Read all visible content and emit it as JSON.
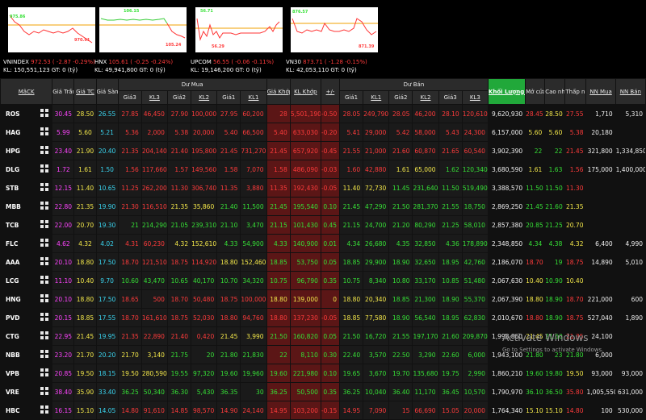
{
  "indices": [
    {
      "name": "VNINDEX",
      "value": "972.53",
      "change": "( -2.87",
      "pct": "-0.29%)",
      "kl": "KL: 150,551,123",
      "gt": "GT: 0 (tỷ)",
      "hi": "975.86",
      "lo": "970.91",
      "ref": 0.55,
      "hiLabel": "top"
    },
    {
      "name": "HNX",
      "value": "105.61",
      "change": "( -0.25",
      "pct": "-0.24%)",
      "kl": "KL: 49,941,800",
      "gt": "GT: 0 (tỷ)",
      "hi": "106.15",
      "lo": "105.24",
      "ref": 0.35,
      "hiLabel": "top"
    },
    {
      "name": "UPCOM",
      "value": "56.55",
      "change": "( -0.06",
      "pct": "-0.11%)",
      "kl": "KL: 19,146,200",
      "gt": "GT: 0 (tỷ)",
      "hi": "56.71",
      "lo": "56.29",
      "ref": 0.45,
      "hiLabel": "top"
    },
    {
      "name": "VN30",
      "value": "873.71",
      "change": "( -1.28",
      "pct": "-0.15%)",
      "kl": "KL: 42,053,110",
      "gt": "GT: 0 (tỷ)",
      "hi": "876.57",
      "lo": "871.39",
      "ref": 0.5,
      "hiLabel": "top"
    }
  ],
  "headers": {
    "mack": "MãCK",
    "tran": "Giá Trần",
    "tc": "Giá TC",
    "san": "Giá Sàn",
    "du_mua": "Dư Mua",
    "du_ban": "Dư Bán",
    "gia3": "Giá3",
    "kl3": "KL3",
    "gia2": "Giá2",
    "kl2": "KL2",
    "gia1": "Giá1",
    "kl1": "KL1",
    "gia_khop": "Giá Khớp",
    "kl_khop": "KL Khớp",
    "change": "+/-",
    "bgia1": "Giá1",
    "bkl1": "KL1",
    "bgia2": "Giá2",
    "bkl2": "KL2",
    "bgia3": "Giá3",
    "bkl3": "KL3",
    "khoi_luong": "Khối Lượng ⇅",
    "mo_cua": "Mở cửa",
    "cao_nhat": "Cao nhất",
    "thap_nhat": "Thấp nhất",
    "nn_mua": "NN Mua",
    "nn_ban": "NN Bán"
  },
  "rows": [
    {
      "sym": "ROS",
      "tran": "30.45",
      "tc": "28.50",
      "san": "26.55",
      "b": [
        "27.85",
        "46,450",
        "27.90",
        "100,000",
        "27.95",
        "60,200"
      ],
      "khop": "28",
      "klk": "5,501,190",
      "chg": "-0.50",
      "s": [
        "28.05",
        "249,790",
        "28.05",
        "46,200",
        "28.10",
        "120,610"
      ],
      "vol": "9,620,930",
      "mo": "28.45",
      "cao": "28.50",
      "thap": "27.55",
      "nnm": "1,710",
      "nnb": "5,310"
    },
    {
      "sym": "HAG",
      "tran": "5.99",
      "tc": "5.60",
      "san": "5.21",
      "b": [
        "5.36",
        "2,000",
        "5.38",
        "20,000",
        "5.40",
        "66,500"
      ],
      "khop": "5.40",
      "klk": "633,030",
      "chg": "-0.20",
      "s": [
        "5.41",
        "29,000",
        "5.42",
        "58,000",
        "5.43",
        "24,300"
      ],
      "vol": "6,157,000",
      "mo": "5.60",
      "cao": "5.60",
      "thap": "5.38",
      "nnm": "20,180",
      "nnb": ""
    },
    {
      "sym": "HPG",
      "tran": "23.40",
      "tc": "21.90",
      "san": "20.40",
      "b": [
        "21.35",
        "204,140",
        "21.40",
        "195,800",
        "21.45",
        "731,270"
      ],
      "khop": "21.45",
      "klk": "657,920",
      "chg": "-0.45",
      "s": [
        "21.55",
        "21,000",
        "21.60",
        "60,870",
        "21.65",
        "60,540"
      ],
      "vol": "3,902,390",
      "mo": "22",
      "cao": "22",
      "thap": "21.45",
      "nnm": "321,800",
      "nnb": "1,334,850"
    },
    {
      "sym": "DLG",
      "tran": "1.72",
      "tc": "1.61",
      "san": "1.50",
      "b": [
        "1.56",
        "117,660",
        "1.57",
        "149,560",
        "1.58",
        "7,070"
      ],
      "khop": "1.58",
      "klk": "486,090",
      "chg": "-0.03",
      "s": [
        "1.60",
        "42,880",
        "1.61",
        "65,000",
        "1.62",
        "120,340"
      ],
      "vol": "3,680,590",
      "mo": "1.61",
      "cao": "1.63",
      "thap": "1.56",
      "nnm": "175,000",
      "nnb": "1,400,000"
    },
    {
      "sym": "STB",
      "tran": "12.15",
      "tc": "11.40",
      "san": "10.65",
      "b": [
        "11.25",
        "262,200",
        "11.30",
        "306,740",
        "11.35",
        "3,880"
      ],
      "khop": "11.35",
      "klk": "192,430",
      "chg": "-0.05",
      "s": [
        "11.40",
        "72,730",
        "11.45",
        "231,640",
        "11.50",
        "519,490"
      ],
      "vol": "3,388,570",
      "mo": "11.50",
      "cao": "11.50",
      "thap": "11.30",
      "nnm": "",
      "nnb": ""
    },
    {
      "sym": "MBB",
      "tran": "22.80",
      "tc": "21.35",
      "san": "19.90",
      "b": [
        "21.30",
        "116,510",
        "21.35",
        "35,860",
        "21.40",
        "11,500"
      ],
      "khop": "21.45",
      "klk": "195,540",
      "chg": "0.10",
      "s": [
        "21.45",
        "47,290",
        "21.50",
        "281,370",
        "21.55",
        "18,750"
      ],
      "vol": "2,869,250",
      "mo": "21.45",
      "cao": "21.60",
      "thap": "21.35",
      "nnm": "",
      "nnb": ""
    },
    {
      "sym": "TCB",
      "tran": "22.00",
      "tc": "20.70",
      "san": "19.30",
      "b": [
        "21",
        "214,290",
        "21.05",
        "239,310",
        "21.10",
        "3,470"
      ],
      "khop": "21.15",
      "klk": "101,430",
      "chg": "0.45",
      "s": [
        "21.15",
        "24,700",
        "21.20",
        "80,290",
        "21.25",
        "58,010"
      ],
      "vol": "2,857,380",
      "mo": "20.85",
      "cao": "21.25",
      "thap": "20.70",
      "nnm": "",
      "nnb": ""
    },
    {
      "sym": "FLC",
      "tran": "4.62",
      "tc": "4.32",
      "san": "4.02",
      "b": [
        "4.31",
        "60,230",
        "4.32",
        "152,610",
        "4.33",
        "54,900"
      ],
      "khop": "4.33",
      "klk": "140,900",
      "chg": "0.01",
      "s": [
        "4.34",
        "26,680",
        "4.35",
        "32,850",
        "4.36",
        "178,890"
      ],
      "vol": "2,348,850",
      "mo": "4.34",
      "cao": "4.38",
      "thap": "4.32",
      "nnm": "6,400",
      "nnb": "4,990"
    },
    {
      "sym": "AAA",
      "tran": "20.10",
      "tc": "18.80",
      "san": "17.50",
      "b": [
        "18.70",
        "121,510",
        "18.75",
        "114,920",
        "18.80",
        "152,460"
      ],
      "khop": "18.85",
      "klk": "53,750",
      "chg": "0.05",
      "s": [
        "18.85",
        "29,900",
        "18.90",
        "32,650",
        "18.95",
        "42,760"
      ],
      "vol": "2,186,070",
      "mo": "18.70",
      "cao": "19",
      "thap": "18.75",
      "nnm": "14,890",
      "nnb": "5,010"
    },
    {
      "sym": "LCG",
      "tran": "11.10",
      "tc": "10.40",
      "san": "9.70",
      "b": [
        "10.60",
        "43,470",
        "10.65",
        "40,170",
        "10.70",
        "34,320"
      ],
      "khop": "10.75",
      "klk": "96,790",
      "chg": "0.35",
      "s": [
        "10.75",
        "8,340",
        "10.80",
        "33,170",
        "10.85",
        "51,480"
      ],
      "vol": "2,067,630",
      "mo": "10.40",
      "cao": "10.90",
      "thap": "10.40",
      "nnm": "",
      "nnb": ""
    },
    {
      "sym": "HNG",
      "tran": "20.10",
      "tc": "18.80",
      "san": "17.50",
      "b": [
        "18.65",
        "500",
        "18.70",
        "50,480",
        "18.75",
        "100,000"
      ],
      "khop": "18.80",
      "klk": "139,000",
      "chg": "0",
      "s": [
        "18.80",
        "20,340",
        "18.85",
        "21,300",
        "18.90",
        "55,370"
      ],
      "vol": "2,067,390",
      "mo": "18.80",
      "cao": "18.90",
      "thap": "18.70",
      "nnm": "221,000",
      "nnb": "600"
    },
    {
      "sym": "PVD",
      "tran": "20.15",
      "tc": "18.85",
      "san": "17.55",
      "b": [
        "18.70",
        "161,610",
        "18.75",
        "52,030",
        "18.80",
        "94,760"
      ],
      "khop": "18.80",
      "klk": "137,230",
      "chg": "-0.05",
      "s": [
        "18.85",
        "77,580",
        "18.90",
        "56,540",
        "18.95",
        "62,830"
      ],
      "vol": "2,010,670",
      "mo": "18.80",
      "cao": "18.90",
      "thap": "18.75",
      "nnm": "527,040",
      "nnb": "1,890"
    },
    {
      "sym": "CTG",
      "tran": "22.95",
      "tc": "21.45",
      "san": "19.95",
      "b": [
        "21.35",
        "22,890",
        "21.40",
        "0,420",
        "21.45",
        "3,990"
      ],
      "khop": "21.50",
      "klk": "160,820",
      "chg": "0.05",
      "s": [
        "21.50",
        "16,720",
        "21.55",
        "197,170",
        "21.60",
        "209,870"
      ],
      "vol": "1,998,860",
      "mo": "21.45",
      "cao": "21.60",
      "thap": "21.35",
      "nnm": "24,100",
      "nnb": ""
    },
    {
      "sym": "NBB",
      "tran": "23.20",
      "tc": "21.70",
      "san": "20.20",
      "b": [
        "21.70",
        "3,140",
        "21.75",
        "20",
        "21.80",
        "21,830"
      ],
      "khop": "22",
      "klk": "8,110",
      "chg": "0.30",
      "s": [
        "22.40",
        "3,570",
        "22.50",
        "3,290",
        "22.60",
        "6,000"
      ],
      "vol": "1,943,100",
      "mo": "21.80",
      "cao": "23",
      "thap": "21.80",
      "nnm": "6,000",
      "nnb": ""
    },
    {
      "sym": "VPB",
      "tran": "20.85",
      "tc": "19.50",
      "san": "18.15",
      "b": [
        "19.50",
        "280,590",
        "19.55",
        "97,320",
        "19.60",
        "19,960"
      ],
      "khop": "19.60",
      "klk": "221,980",
      "chg": "0.10",
      "s": [
        "19.65",
        "3,670",
        "19.70",
        "135,680",
        "19.75",
        "2,990"
      ],
      "vol": "1,860,210",
      "mo": "19.60",
      "cao": "19.80",
      "thap": "19.50",
      "nnm": "93,000",
      "nnb": "93,000"
    },
    {
      "sym": "VRE",
      "tran": "38.40",
      "tc": "35.90",
      "san": "33.40",
      "b": [
        "36.25",
        "50,340",
        "36.30",
        "5,430",
        "36.35",
        "30"
      ],
      "khop": "36.25",
      "klk": "50,500",
      "chg": "0.35",
      "s": [
        "36.25",
        "10,040",
        "36.40",
        "11,170",
        "36.45",
        "10,570"
      ],
      "vol": "1,790,970",
      "mo": "36.10",
      "cao": "36.50",
      "thap": "35.80",
      "nnm": "1,005,550",
      "nnb": "631,000"
    },
    {
      "sym": "HBC",
      "tran": "16.15",
      "tc": "15.10",
      "san": "14.05",
      "b": [
        "14.80",
        "91,610",
        "14.85",
        "98,570",
        "14.90",
        "24,140"
      ],
      "khop": "14.95",
      "klk": "103,200",
      "chg": "-0.15",
      "s": [
        "14.95",
        "7,090",
        "15",
        "66,690",
        "15.05",
        "20,000"
      ],
      "vol": "1,764,340",
      "mo": "15.10",
      "cao": "15.10",
      "thap": "14.80",
      "nnm": "100",
      "nnb": "530,000"
    }
  ],
  "watermark": {
    "title": "Activate Windows",
    "sub": "Go to Settings to activate Windows."
  }
}
